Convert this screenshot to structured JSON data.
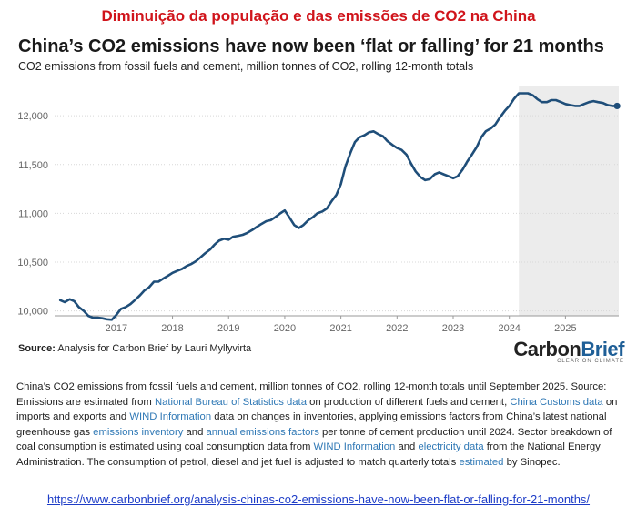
{
  "banner": "Diminuição da população e das emissões de CO2 na China",
  "source": {
    "label": "Source:",
    "text": " Analysis for Carbon Brief by Lauri Myllyvirta"
  },
  "logo": {
    "part1": "Carbon",
    "part2": "Brief",
    "tagline": "CLEAR ON CLIMATE"
  },
  "description": [
    {
      "t": "China’s CO2 emissions from fossil fuels and cement, million tonnes of CO2, rolling 12-month totals until September 2025. Source: Emissions are estimated from "
    },
    {
      "t": "National Bureau of Statistics data",
      "link": true
    },
    {
      "t": " on production of different fuels and cement, "
    },
    {
      "t": "China Customs data",
      "link": true
    },
    {
      "t": " on imports and exports and "
    },
    {
      "t": "WIND Information",
      "link": true
    },
    {
      "t": " data on changes in inventories, applying emissions factors from China’s latest national greenhouse gas "
    },
    {
      "t": "emissions inventory",
      "link": true
    },
    {
      "t": " and "
    },
    {
      "t": "annual emissions factors",
      "link": true
    },
    {
      "t": " per tonne of cement production until 2024. Sector breakdown of coal consumption is estimated using coal consumption data from "
    },
    {
      "t": "WIND Information",
      "link": true
    },
    {
      "t": " and "
    },
    {
      "t": "electricity data",
      "link": true
    },
    {
      "t": " from the National Energy Administration. The consumption of petrol, diesel and jet fuel is adjusted to match quarterly totals "
    },
    {
      "t": "estimated",
      "link": true
    },
    {
      "t": " by Sinopec."
    }
  ],
  "url": "https://www.carbonbrief.org/analysis-chinas-co2-emissions-have-now-been-flat-or-falling-for-21-months/",
  "chart_data": {
    "type": "line",
    "title": "China’s CO2 emissions have now been ‘flat or falling’ for 21 months",
    "subtitle": "CO2 emissions from fossil fuels and cement, million tonnes of CO2, rolling 12-month totals",
    "xlabel": "",
    "ylabel": "",
    "ylim": [
      9950,
      12300
    ],
    "xlim": [
      2015.9,
      2025.95
    ],
    "y_ticks": [
      10000,
      10500,
      11000,
      11500,
      12000
    ],
    "y_tick_labels": [
      "10,000",
      "10,500",
      "11,000",
      "11,500",
      "12,000"
    ],
    "x_ticks": [
      2017,
      2018,
      2019,
      2020,
      2021,
      2022,
      2023,
      2024,
      2025
    ],
    "x_tick_labels": [
      "2017",
      "2018",
      "2019",
      "2020",
      "2021",
      "2022",
      "2023",
      "2024",
      "2025"
    ],
    "grid": "horizontal",
    "line_color": "#1f4e79",
    "shade_color": "#ececec",
    "shaded_region": [
      2024.17,
      2025.95
    ],
    "series": [
      {
        "points": [
          [
            2016.0,
            10110
          ],
          [
            2016.08,
            10090
          ],
          [
            2016.17,
            10120
          ],
          [
            2016.25,
            10100
          ],
          [
            2016.33,
            10040
          ],
          [
            2016.42,
            10000
          ],
          [
            2016.5,
            9950
          ],
          [
            2016.58,
            9930
          ],
          [
            2016.67,
            9930
          ],
          [
            2016.75,
            9925
          ],
          [
            2016.83,
            9915
          ],
          [
            2016.92,
            9910
          ],
          [
            2017.0,
            9960
          ],
          [
            2017.08,
            10020
          ],
          [
            2017.17,
            10040
          ],
          [
            2017.25,
            10070
          ],
          [
            2017.33,
            10110
          ],
          [
            2017.42,
            10160
          ],
          [
            2017.5,
            10210
          ],
          [
            2017.58,
            10240
          ],
          [
            2017.67,
            10300
          ],
          [
            2017.75,
            10300
          ],
          [
            2017.83,
            10330
          ],
          [
            2017.92,
            10360
          ],
          [
            2018.0,
            10390
          ],
          [
            2018.08,
            10410
          ],
          [
            2018.17,
            10430
          ],
          [
            2018.25,
            10460
          ],
          [
            2018.33,
            10480
          ],
          [
            2018.42,
            10510
          ],
          [
            2018.5,
            10550
          ],
          [
            2018.58,
            10590
          ],
          [
            2018.67,
            10630
          ],
          [
            2018.75,
            10680
          ],
          [
            2018.83,
            10720
          ],
          [
            2018.92,
            10740
          ],
          [
            2019.0,
            10730
          ],
          [
            2019.08,
            10760
          ],
          [
            2019.17,
            10770
          ],
          [
            2019.25,
            10780
          ],
          [
            2019.33,
            10800
          ],
          [
            2019.42,
            10830
          ],
          [
            2019.5,
            10860
          ],
          [
            2019.58,
            10890
          ],
          [
            2019.67,
            10920
          ],
          [
            2019.75,
            10930
          ],
          [
            2019.83,
            10960
          ],
          [
            2019.92,
            11000
          ],
          [
            2020.0,
            11030
          ],
          [
            2020.08,
            10960
          ],
          [
            2020.17,
            10880
          ],
          [
            2020.25,
            10850
          ],
          [
            2020.33,
            10880
          ],
          [
            2020.42,
            10930
          ],
          [
            2020.5,
            10960
          ],
          [
            2020.58,
            11000
          ],
          [
            2020.67,
            11020
          ],
          [
            2020.75,
            11050
          ],
          [
            2020.83,
            11120
          ],
          [
            2020.92,
            11190
          ],
          [
            2021.0,
            11300
          ],
          [
            2021.08,
            11480
          ],
          [
            2021.17,
            11620
          ],
          [
            2021.25,
            11730
          ],
          [
            2021.33,
            11780
          ],
          [
            2021.42,
            11800
          ],
          [
            2021.5,
            11830
          ],
          [
            2021.58,
            11840
          ],
          [
            2021.67,
            11810
          ],
          [
            2021.75,
            11790
          ],
          [
            2021.83,
            11740
          ],
          [
            2021.92,
            11700
          ],
          [
            2022.0,
            11670
          ],
          [
            2022.08,
            11650
          ],
          [
            2022.17,
            11600
          ],
          [
            2022.25,
            11510
          ],
          [
            2022.33,
            11430
          ],
          [
            2022.42,
            11370
          ],
          [
            2022.5,
            11340
          ],
          [
            2022.58,
            11350
          ],
          [
            2022.67,
            11400
          ],
          [
            2022.75,
            11420
          ],
          [
            2022.83,
            11400
          ],
          [
            2022.92,
            11380
          ],
          [
            2023.0,
            11360
          ],
          [
            2023.08,
            11380
          ],
          [
            2023.17,
            11450
          ],
          [
            2023.25,
            11530
          ],
          [
            2023.33,
            11600
          ],
          [
            2023.42,
            11680
          ],
          [
            2023.5,
            11780
          ],
          [
            2023.58,
            11840
          ],
          [
            2023.67,
            11870
          ],
          [
            2023.75,
            11910
          ],
          [
            2023.83,
            11980
          ],
          [
            2023.92,
            12050
          ],
          [
            2024.0,
            12100
          ],
          [
            2024.08,
            12170
          ],
          [
            2024.17,
            12230
          ],
          [
            2024.25,
            12230
          ],
          [
            2024.33,
            12230
          ],
          [
            2024.42,
            12210
          ],
          [
            2024.5,
            12170
          ],
          [
            2024.58,
            12140
          ],
          [
            2024.67,
            12140
          ],
          [
            2024.75,
            12160
          ],
          [
            2024.83,
            12160
          ],
          [
            2024.92,
            12140
          ],
          [
            2025.0,
            12120
          ],
          [
            2025.08,
            12110
          ],
          [
            2025.17,
            12100
          ],
          [
            2025.25,
            12100
          ],
          [
            2025.33,
            12120
          ],
          [
            2025.42,
            12140
          ],
          [
            2025.5,
            12150
          ],
          [
            2025.58,
            12140
          ],
          [
            2025.67,
            12130
          ],
          [
            2025.75,
            12110
          ],
          [
            2025.83,
            12100
          ],
          [
            2025.92,
            12100
          ]
        ]
      }
    ]
  }
}
